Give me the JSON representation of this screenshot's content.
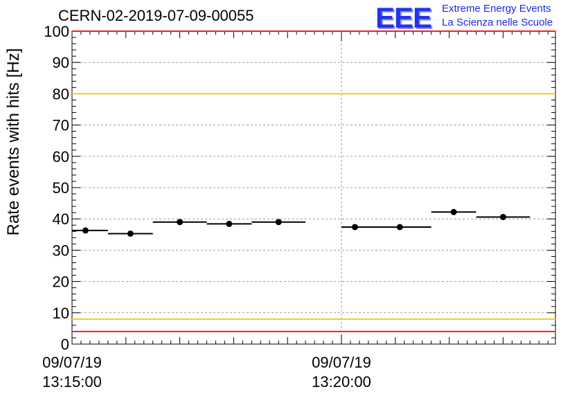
{
  "title": "CERN-02-2019-07-09-00055",
  "logo": {
    "mark": "EEE",
    "line1": "Extreme Energy Events",
    "line2": "La Scienza nelle Scuole"
  },
  "chart_data": {
    "type": "scatter",
    "ylabel": "Rate events with hits [Hz]",
    "ylim": [
      0,
      100
    ],
    "y_ticks": [
      "0",
      "10",
      "20",
      "30",
      "40",
      "50",
      "60",
      "70",
      "80",
      "90",
      "100"
    ],
    "x_ticks": [
      {
        "date": "09/07/19",
        "time": "13:15:00"
      },
      {
        "date": "09/07/19",
        "time": "13:20:00"
      }
    ],
    "grid": true,
    "threshold_lines": [
      {
        "value": 100,
        "color": "#ee2222"
      },
      {
        "value": 80,
        "color": "#eecc22"
      },
      {
        "value": 8,
        "color": "#eecc22"
      },
      {
        "value": 4,
        "color": "#ee2222"
      }
    ],
    "series": [
      {
        "points": [
          {
            "x_start": "13:14:50",
            "x_end": "13:15:40",
            "y": 36.3
          },
          {
            "x_start": "13:15:40",
            "x_end": "13:16:30",
            "y": 35.3
          },
          {
            "x_start": "13:16:30",
            "x_end": "13:17:30",
            "y": 39.0
          },
          {
            "x_start": "13:17:30",
            "x_end": "13:18:20",
            "y": 38.4
          },
          {
            "x_start": "13:18:20",
            "x_end": "13:19:20",
            "y": 39.0
          },
          {
            "x_start": "13:20:00",
            "x_end": "13:20:30",
            "y": 37.4
          },
          {
            "x_start": "13:20:30",
            "x_end": "13:21:40",
            "y": 37.4
          },
          {
            "x_start": "13:21:40",
            "x_end": "13:22:30",
            "y": 42.2
          },
          {
            "x_start": "13:22:30",
            "x_end": "13:23:30",
            "y": 40.6
          }
        ],
        "color": "#000000"
      }
    ]
  }
}
